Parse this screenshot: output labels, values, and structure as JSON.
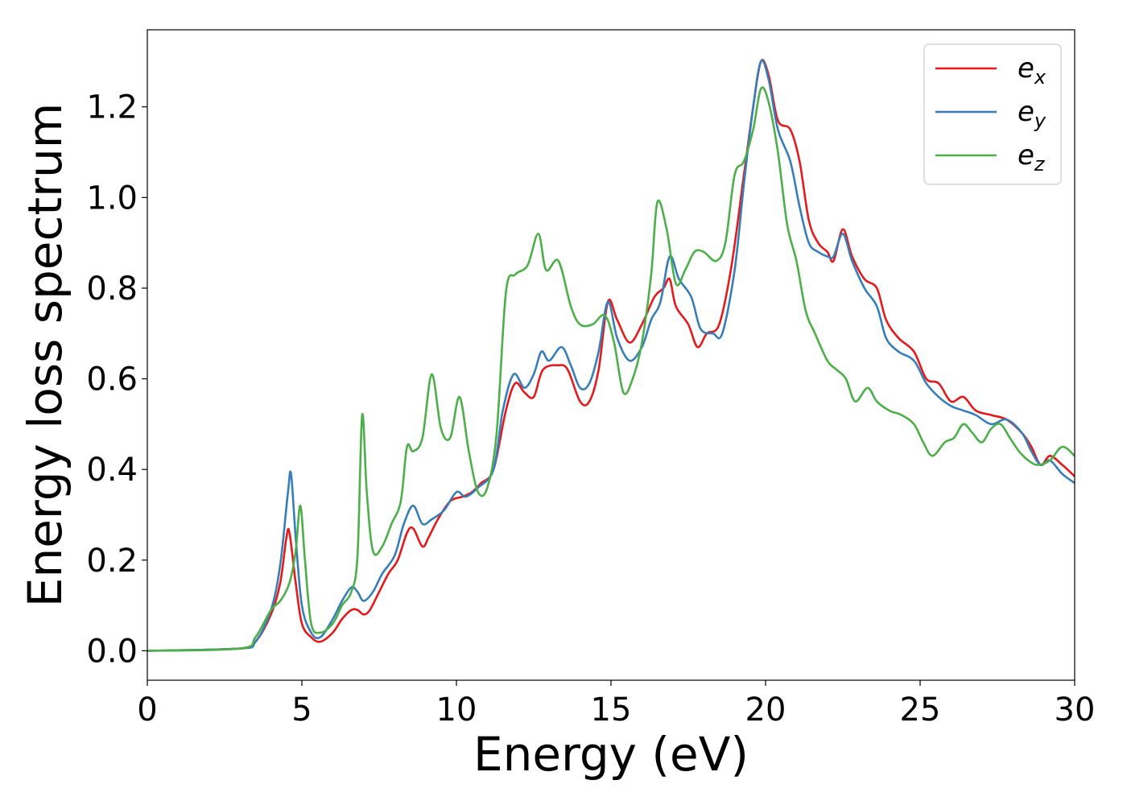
{
  "chart_data": {
    "type": "line",
    "xlabel": "Energy (eV)",
    "ylabel": "Energy loss spectrum",
    "xlim": [
      0,
      30
    ],
    "ylim": [
      -0.065,
      1.37
    ],
    "xticks": [
      "0",
      "5",
      "10",
      "15",
      "20",
      "25",
      "30"
    ],
    "xtick_values": [
      0,
      5,
      10,
      15,
      20,
      25,
      30
    ],
    "yticks": [
      "0.0",
      "0.2",
      "0.4",
      "0.6",
      "0.8",
      "1.0",
      "1.2"
    ],
    "ytick_values": [
      0.0,
      0.2,
      0.4,
      0.6,
      0.8,
      1.0,
      1.2
    ],
    "grid": false,
    "legend_position": "top-right",
    "series": [
      {
        "name": "x",
        "legend_base": "e",
        "legend_sub": "x",
        "color": "#e41a1c",
        "points": [
          [
            0,
            0
          ],
          [
            3,
            0.005
          ],
          [
            3.5,
            0.02
          ],
          [
            4,
            0.08
          ],
          [
            4.3,
            0.15
          ],
          [
            4.5,
            0.25
          ],
          [
            4.6,
            0.26
          ],
          [
            4.8,
            0.15
          ],
          [
            5.0,
            0.06
          ],
          [
            5.3,
            0.03
          ],
          [
            5.6,
            0.02
          ],
          [
            6.0,
            0.04
          ],
          [
            6.3,
            0.07
          ],
          [
            6.6,
            0.09
          ],
          [
            6.8,
            0.09
          ],
          [
            7.0,
            0.08
          ],
          [
            7.2,
            0.09
          ],
          [
            7.5,
            0.13
          ],
          [
            7.8,
            0.17
          ],
          [
            8.1,
            0.2
          ],
          [
            8.4,
            0.26
          ],
          [
            8.6,
            0.27
          ],
          [
            8.9,
            0.23
          ],
          [
            9.1,
            0.25
          ],
          [
            9.4,
            0.29
          ],
          [
            9.8,
            0.33
          ],
          [
            10.2,
            0.34
          ],
          [
            10.5,
            0.35
          ],
          [
            10.8,
            0.37
          ],
          [
            11.2,
            0.4
          ],
          [
            11.6,
            0.53
          ],
          [
            11.9,
            0.59
          ],
          [
            12.2,
            0.57
          ],
          [
            12.5,
            0.56
          ],
          [
            12.8,
            0.62
          ],
          [
            13.3,
            0.63
          ],
          [
            13.6,
            0.62
          ],
          [
            14.0,
            0.55
          ],
          [
            14.3,
            0.55
          ],
          [
            14.6,
            0.62
          ],
          [
            14.9,
            0.77
          ],
          [
            15.2,
            0.73
          ],
          [
            15.6,
            0.68
          ],
          [
            16.0,
            0.72
          ],
          [
            16.4,
            0.78
          ],
          [
            16.7,
            0.8
          ],
          [
            16.9,
            0.82
          ],
          [
            17.1,
            0.76
          ],
          [
            17.5,
            0.72
          ],
          [
            17.8,
            0.67
          ],
          [
            18.1,
            0.7
          ],
          [
            18.5,
            0.72
          ],
          [
            18.9,
            0.85
          ],
          [
            19.3,
            1.05
          ],
          [
            19.6,
            1.2
          ],
          [
            19.85,
            1.3
          ],
          [
            20.1,
            1.27
          ],
          [
            20.4,
            1.17
          ],
          [
            20.8,
            1.15
          ],
          [
            21.1,
            1.08
          ],
          [
            21.4,
            0.95
          ],
          [
            21.7,
            0.9
          ],
          [
            22.0,
            0.88
          ],
          [
            22.2,
            0.86
          ],
          [
            22.5,
            0.93
          ],
          [
            22.8,
            0.87
          ],
          [
            23.2,
            0.82
          ],
          [
            23.6,
            0.8
          ],
          [
            23.9,
            0.73
          ],
          [
            24.3,
            0.69
          ],
          [
            24.8,
            0.66
          ],
          [
            25.2,
            0.6
          ],
          [
            25.6,
            0.59
          ],
          [
            26.0,
            0.55
          ],
          [
            26.4,
            0.56
          ],
          [
            26.8,
            0.53
          ],
          [
            27.3,
            0.52
          ],
          [
            27.8,
            0.51
          ],
          [
            28.3,
            0.48
          ],
          [
            28.6,
            0.45
          ],
          [
            28.9,
            0.41
          ],
          [
            29.2,
            0.43
          ],
          [
            29.6,
            0.41
          ],
          [
            30,
            0.385
          ]
        ]
      },
      {
        "name": "y",
        "legend_base": "e",
        "legend_sub": "y",
        "color": "#377eb8",
        "points": [
          [
            0,
            0
          ],
          [
            3,
            0.005
          ],
          [
            3.5,
            0.02
          ],
          [
            4,
            0.09
          ],
          [
            4.3,
            0.19
          ],
          [
            4.55,
            0.35
          ],
          [
            4.65,
            0.39
          ],
          [
            4.8,
            0.25
          ],
          [
            5.0,
            0.1
          ],
          [
            5.3,
            0.04
          ],
          [
            5.6,
            0.03
          ],
          [
            6.0,
            0.07
          ],
          [
            6.3,
            0.11
          ],
          [
            6.6,
            0.14
          ],
          [
            6.8,
            0.13
          ],
          [
            7.0,
            0.11
          ],
          [
            7.3,
            0.13
          ],
          [
            7.6,
            0.17
          ],
          [
            8.0,
            0.21
          ],
          [
            8.3,
            0.28
          ],
          [
            8.6,
            0.32
          ],
          [
            8.9,
            0.28
          ],
          [
            9.2,
            0.29
          ],
          [
            9.6,
            0.31
          ],
          [
            10.0,
            0.35
          ],
          [
            10.3,
            0.34
          ],
          [
            10.7,
            0.36
          ],
          [
            11.2,
            0.4
          ],
          [
            11.5,
            0.53
          ],
          [
            11.85,
            0.61
          ],
          [
            12.2,
            0.58
          ],
          [
            12.5,
            0.61
          ],
          [
            12.75,
            0.66
          ],
          [
            13.0,
            0.64
          ],
          [
            13.4,
            0.67
          ],
          [
            13.7,
            0.63
          ],
          [
            14.0,
            0.58
          ],
          [
            14.3,
            0.59
          ],
          [
            14.6,
            0.66
          ],
          [
            14.9,
            0.77
          ],
          [
            15.2,
            0.69
          ],
          [
            15.6,
            0.64
          ],
          [
            16.0,
            0.67
          ],
          [
            16.3,
            0.73
          ],
          [
            16.6,
            0.77
          ],
          [
            16.9,
            0.87
          ],
          [
            17.2,
            0.82
          ],
          [
            17.6,
            0.78
          ],
          [
            17.9,
            0.71
          ],
          [
            18.3,
            0.7
          ],
          [
            18.6,
            0.7
          ],
          [
            19.0,
            0.84
          ],
          [
            19.3,
            1.03
          ],
          [
            19.6,
            1.2
          ],
          [
            19.85,
            1.3
          ],
          [
            20.1,
            1.26
          ],
          [
            20.4,
            1.15
          ],
          [
            20.8,
            1.08
          ],
          [
            21.1,
            0.98
          ],
          [
            21.4,
            0.9
          ],
          [
            21.7,
            0.88
          ],
          [
            22.0,
            0.87
          ],
          [
            22.2,
            0.87
          ],
          [
            22.5,
            0.92
          ],
          [
            22.8,
            0.86
          ],
          [
            23.2,
            0.8
          ],
          [
            23.6,
            0.76
          ],
          [
            23.9,
            0.69
          ],
          [
            24.3,
            0.66
          ],
          [
            24.8,
            0.64
          ],
          [
            25.2,
            0.59
          ],
          [
            25.6,
            0.56
          ],
          [
            26.0,
            0.54
          ],
          [
            26.4,
            0.53
          ],
          [
            26.8,
            0.52
          ],
          [
            27.3,
            0.5
          ],
          [
            27.8,
            0.51
          ],
          [
            28.3,
            0.48
          ],
          [
            28.6,
            0.44
          ],
          [
            28.9,
            0.41
          ],
          [
            29.2,
            0.42
          ],
          [
            29.6,
            0.39
          ],
          [
            30,
            0.37
          ]
        ]
      },
      {
        "name": "z",
        "legend_base": "e",
        "legend_sub": "z",
        "color": "#4daf4a",
        "points": [
          [
            0,
            0
          ],
          [
            3,
            0.005
          ],
          [
            3.5,
            0.03
          ],
          [
            4,
            0.09
          ],
          [
            4.3,
            0.11
          ],
          [
            4.6,
            0.15
          ],
          [
            4.8,
            0.22
          ],
          [
            4.95,
            0.32
          ],
          [
            5.1,
            0.2
          ],
          [
            5.3,
            0.06
          ],
          [
            5.6,
            0.04
          ],
          [
            6.0,
            0.06
          ],
          [
            6.3,
            0.1
          ],
          [
            6.6,
            0.13
          ],
          [
            6.8,
            0.21
          ],
          [
            6.95,
            0.52
          ],
          [
            7.1,
            0.35
          ],
          [
            7.3,
            0.22
          ],
          [
            7.6,
            0.23
          ],
          [
            7.9,
            0.28
          ],
          [
            8.2,
            0.33
          ],
          [
            8.4,
            0.45
          ],
          [
            8.6,
            0.44
          ],
          [
            8.9,
            0.47
          ],
          [
            9.2,
            0.61
          ],
          [
            9.5,
            0.49
          ],
          [
            9.8,
            0.47
          ],
          [
            10.1,
            0.56
          ],
          [
            10.4,
            0.44
          ],
          [
            10.7,
            0.35
          ],
          [
            11.0,
            0.36
          ],
          [
            11.3,
            0.48
          ],
          [
            11.6,
            0.79
          ],
          [
            11.9,
            0.83
          ],
          [
            12.3,
            0.85
          ],
          [
            12.65,
            0.92
          ],
          [
            12.9,
            0.84
          ],
          [
            13.3,
            0.86
          ],
          [
            13.7,
            0.76
          ],
          [
            14.0,
            0.72
          ],
          [
            14.4,
            0.72
          ],
          [
            14.8,
            0.74
          ],
          [
            15.1,
            0.68
          ],
          [
            15.4,
            0.57
          ],
          [
            15.7,
            0.6
          ],
          [
            16.0,
            0.68
          ],
          [
            16.3,
            0.83
          ],
          [
            16.5,
            0.99
          ],
          [
            16.8,
            0.93
          ],
          [
            17.1,
            0.81
          ],
          [
            17.4,
            0.84
          ],
          [
            17.7,
            0.88
          ],
          [
            18.0,
            0.88
          ],
          [
            18.4,
            0.86
          ],
          [
            18.7,
            0.9
          ],
          [
            19.0,
            1.05
          ],
          [
            19.3,
            1.08
          ],
          [
            19.6,
            1.15
          ],
          [
            19.85,
            1.24
          ],
          [
            20.1,
            1.21
          ],
          [
            20.4,
            1.1
          ],
          [
            20.7,
            0.94
          ],
          [
            21.0,
            0.86
          ],
          [
            21.3,
            0.75
          ],
          [
            21.6,
            0.7
          ],
          [
            22.0,
            0.64
          ],
          [
            22.3,
            0.62
          ],
          [
            22.6,
            0.6
          ],
          [
            22.9,
            0.55
          ],
          [
            23.3,
            0.58
          ],
          [
            23.6,
            0.55
          ],
          [
            24.0,
            0.53
          ],
          [
            24.4,
            0.52
          ],
          [
            24.8,
            0.5
          ],
          [
            25.1,
            0.46
          ],
          [
            25.4,
            0.43
          ],
          [
            25.8,
            0.46
          ],
          [
            26.1,
            0.47
          ],
          [
            26.4,
            0.5
          ],
          [
            26.7,
            0.48
          ],
          [
            27.0,
            0.46
          ],
          [
            27.3,
            0.49
          ],
          [
            27.6,
            0.5
          ],
          [
            27.9,
            0.47
          ],
          [
            28.2,
            0.44
          ],
          [
            28.5,
            0.42
          ],
          [
            28.8,
            0.41
          ],
          [
            29.2,
            0.42
          ],
          [
            29.6,
            0.45
          ],
          [
            30,
            0.43
          ]
        ]
      }
    ]
  }
}
